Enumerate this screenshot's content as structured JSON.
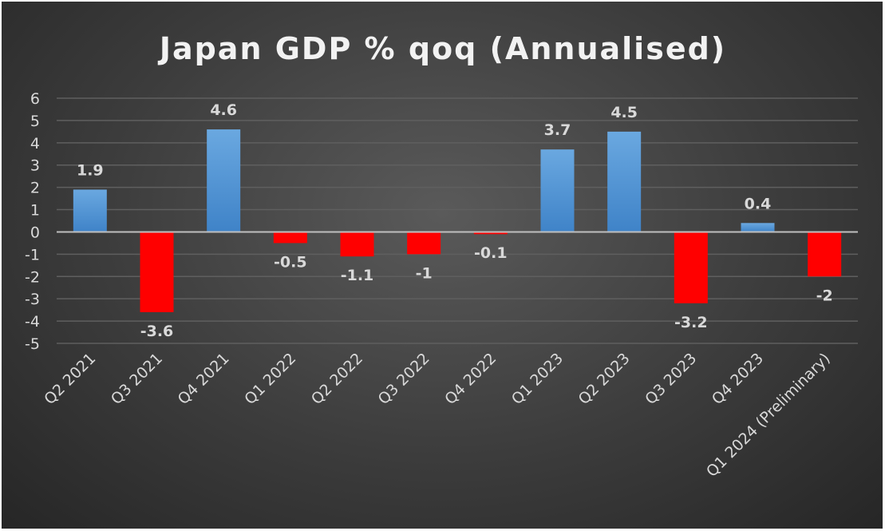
{
  "chart_data": {
    "type": "bar",
    "title": "Japan GDP % qoq (Annualised)",
    "xlabel": "",
    "ylabel": "",
    "categories": [
      "Q2 2021",
      "Q3 2021",
      "Q4 2021",
      "Q1 2022",
      "Q2 2022",
      "Q3 2022",
      "Q4 2022",
      "Q1 2023",
      "Q2 2023",
      "Q3 2023",
      "Q4 2023",
      "Q1 2024 (Preliminary)"
    ],
    "values": [
      1.9,
      -3.6,
      4.6,
      -0.5,
      -1.1,
      -1,
      -0.1,
      3.7,
      4.5,
      -3.2,
      0.4,
      -2
    ],
    "ylim": [
      -5,
      6
    ],
    "yticks": [
      6,
      5,
      4,
      3,
      2,
      1,
      0,
      -1,
      -2,
      -3,
      -4,
      -5
    ],
    "grid": true,
    "legend": "none",
    "colors": {
      "positive": "#5b9bd5",
      "negative": "#ff0000"
    }
  }
}
